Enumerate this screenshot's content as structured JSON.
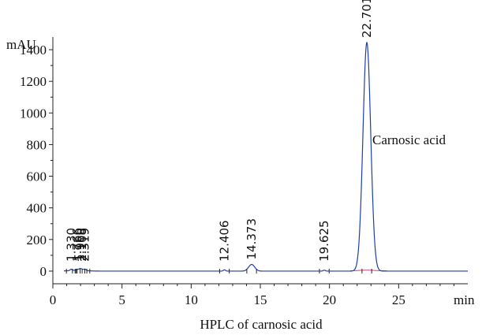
{
  "chart_data": {
    "type": "line",
    "title": "",
    "xlabel": "min",
    "ylabel": "mAU",
    "caption": "HPLC of carnosic acid",
    "xlim": [
      0,
      30
    ],
    "ylim": [
      -80,
      1480
    ],
    "x_ticks": [
      "0",
      "5",
      "10",
      "15",
      "20",
      "25"
    ],
    "y_ticks": [
      "0",
      "200",
      "400",
      "600",
      "800",
      "1000",
      "1200",
      "1400"
    ],
    "x_tick_values": [
      0,
      5,
      10,
      15,
      20,
      25
    ],
    "y_tick_values": [
      0,
      200,
      400,
      600,
      800,
      1000,
      1200,
      1400
    ],
    "grid": false,
    "peaks": [
      {
        "label": "1.330",
        "rt": 1.33,
        "height": 8
      },
      {
        "label": "1.766",
        "rt": 1.766,
        "height": 6
      },
      {
        "label": "1.960",
        "rt": 1.96,
        "height": 10
      },
      {
        "label": "2.108",
        "rt": 2.108,
        "height": 7
      },
      {
        "label": "2.319",
        "rt": 2.319,
        "height": 9
      },
      {
        "label": "12.406",
        "rt": 12.406,
        "height": 8
      },
      {
        "label": "14.373",
        "rt": 14.373,
        "height": 42
      },
      {
        "label": "19.625",
        "rt": 19.625,
        "height": 6
      },
      {
        "label": "22.701",
        "rt": 22.701,
        "height": 1445
      }
    ],
    "annotation": "Carnosic acid",
    "series": [
      {
        "color": "#1f3fa8"
      },
      {
        "color": "#d0408a"
      }
    ]
  }
}
